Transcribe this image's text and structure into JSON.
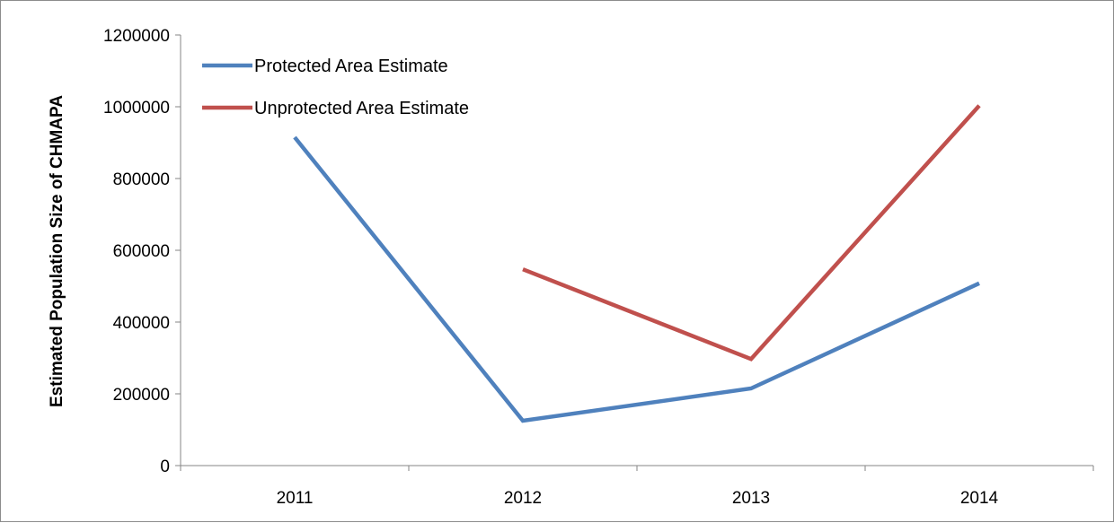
{
  "chart_data": {
    "type": "line",
    "title": "",
    "xlabel": "",
    "ylabel": "Estimated Population Size of CHMAPA",
    "categories": [
      "2011",
      "2012",
      "2013",
      "2014"
    ],
    "ylim": [
      0,
      1200000
    ],
    "yticks": [
      0,
      200000,
      400000,
      600000,
      800000,
      1000000,
      1200000
    ],
    "ytick_labels": [
      "0",
      "200000",
      "400000",
      "600000",
      "800000",
      "1000000",
      "1200000"
    ],
    "grid": false,
    "legend_position": "top-left",
    "series": [
      {
        "name": "Protected Area Estimate",
        "color": "#4f81bd",
        "values": [
          915000,
          125000,
          215000,
          508000
        ]
      },
      {
        "name": "Unprotected Area Estimate",
        "color": "#c0504d",
        "values": [
          null,
          547000,
          297000,
          1003000
        ]
      }
    ]
  }
}
